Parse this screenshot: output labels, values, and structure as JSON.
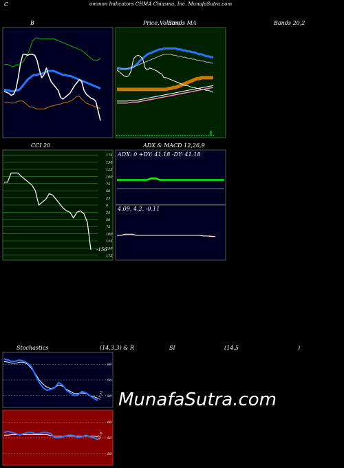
{
  "header": {
    "c_letter": "C",
    "title": "ommon Indicators CHMA Chiasma, Inc. MunafaSutra.com"
  },
  "labels": {
    "b": "B",
    "price_a": "Price, ",
    "price_b": "Volume",
    "price_c": "Bands MA",
    "bands": "Bands 20,2",
    "cci": "CCI 20",
    "adx": "ADX  & MACD 12,26,9",
    "adx_values": "ADX: 0  +DY: 41.18  -DY: 41.18",
    "macd_values": "4.09,  4.2,  -0.11",
    "stoch_a": "Stochastics",
    "stoch_b": "(14,3,3) & R",
    "stoch_c": "SI",
    "stoch_d": "(14,5",
    "stoch_e": ")"
  },
  "watermark": "MunafaSutra.com",
  "colors": {
    "panel_navy": "#000022",
    "price_bg": "#002200",
    "cci_bg": "#001a00",
    "rsi_bg": "#880000",
    "green": "#00cc00",
    "blue": "#2277ff",
    "orange": "#cc7700"
  },
  "chart_data": [
    {
      "type": "line",
      "panel": "bollinger",
      "series": [
        {
          "values": [
            73,
            74,
            73,
            72,
            71,
            73,
            73,
            75,
            76,
            80,
            84,
            90,
            97,
            100,
            101,
            100,
            100,
            100,
            100,
            100,
            100,
            100,
            99,
            98,
            97,
            96,
            95,
            94,
            93,
            92,
            91,
            90,
            89,
            88,
            86,
            84,
            82,
            80,
            78,
            78,
            78,
            80
          ]
        },
        {
          "values": [
            48,
            47,
            47,
            46,
            46,
            47,
            47,
            49,
            52,
            55,
            58,
            60,
            62,
            63,
            63,
            64,
            64,
            65,
            66,
            67,
            67,
            67,
            66,
            65,
            64,
            63,
            63,
            62,
            62,
            61,
            60,
            59,
            58,
            57,
            56,
            55,
            54,
            53,
            52,
            51,
            50,
            49
          ]
        },
        {
          "values": [
            35,
            34,
            35,
            34,
            34,
            35,
            36,
            36,
            36,
            34,
            32,
            30,
            30,
            29,
            28,
            28,
            28,
            28,
            29,
            30,
            31,
            31,
            32,
            33,
            33,
            34,
            35,
            35,
            36,
            37,
            39,
            41,
            41,
            38,
            36,
            34,
            33,
            32,
            31,
            30,
            30,
            28
          ]
        },
        {
          "values": [
            46,
            45,
            44,
            42,
            43,
            48,
            60,
            75,
            84,
            84,
            83,
            84,
            84,
            83,
            78,
            68,
            60,
            63,
            70,
            62,
            56,
            53,
            50,
            47,
            40,
            38,
            40,
            42,
            44,
            48,
            52,
            55,
            58,
            56,
            47,
            43,
            41,
            39,
            38,
            36,
            26,
            16
          ]
        }
      ]
    },
    {
      "type": "line",
      "panel": "price",
      "series": [
        {
          "values": [
            48,
            48,
            48,
            48,
            48,
            48,
            48,
            48,
            48,
            48,
            48,
            48,
            48,
            48,
            48,
            48,
            48,
            48,
            48,
            48,
            48,
            48,
            49,
            49,
            50,
            50,
            51,
            52,
            53,
            54,
            55,
            56,
            57,
            58,
            59,
            59,
            60,
            60,
            60,
            60,
            60,
            60
          ]
        },
        {
          "values": [
            68,
            66,
            64,
            62,
            61,
            62,
            67,
            79,
            82,
            83,
            82,
            79,
            70,
            68,
            70,
            69,
            68,
            67,
            65,
            64,
            60,
            60,
            59,
            58,
            57,
            56,
            55,
            54,
            53,
            52,
            52,
            51,
            50,
            50,
            49,
            49,
            48,
            48,
            47,
            47,
            46,
            45
          ]
        },
        {
          "values": [
            70,
            70,
            69,
            69,
            69,
            69,
            70,
            71,
            73,
            75,
            78,
            80,
            82,
            84,
            85,
            86,
            87,
            88,
            89,
            89,
            90,
            90,
            90,
            90,
            90,
            90,
            89,
            89,
            88,
            88,
            87,
            87,
            86,
            86,
            85,
            84,
            84,
            83,
            82,
            82,
            81,
            81
          ]
        },
        {
          "values": [
            69,
            69,
            69,
            69,
            69,
            70,
            70,
            71,
            72,
            73,
            74,
            75,
            76,
            77,
            78,
            79,
            80,
            81,
            82,
            83,
            84,
            84,
            84,
            84,
            83,
            83,
            82,
            82,
            81,
            81,
            80,
            80,
            79,
            79,
            78,
            78,
            77,
            77,
            76,
            76,
            75,
            75
          ]
        }
      ],
      "volume": [
        1,
        1,
        1,
        1,
        1,
        1,
        1,
        1,
        1,
        1,
        1,
        1,
        1,
        1,
        1,
        1,
        1,
        1,
        1,
        1,
        1,
        1,
        1,
        1,
        1,
        1,
        1,
        1,
        1,
        1,
        1,
        1,
        1,
        1,
        1,
        1,
        1,
        1,
        1,
        1,
        5,
        1
      ]
    },
    {
      "type": "line",
      "panel": "cci",
      "title": "CCI 20",
      "yticks": [
        175,
        150,
        125,
        100,
        75,
        50,
        25,
        0,
        -25,
        -50,
        -75,
        -100,
        -125,
        -150,
        -175
      ],
      "ytick_labels": [
        "175",
        "150",
        "125",
        "100",
        "75",
        "50",
        "25",
        "0",
        "25",
        "50",
        "75",
        "100",
        "125",
        "150",
        "175"
      ],
      "ylim": [
        -187.5,
        187.5
      ],
      "last_label": "-156",
      "series": [
        {
          "values": [
            80,
            80,
            112,
            112,
            112,
            100,
            90,
            80,
            70,
            50,
            0,
            10,
            20,
            40,
            35,
            20,
            5,
            -10,
            -20,
            -25,
            -45,
            -25,
            -20,
            -30,
            -60,
            -156
          ]
        }
      ]
    },
    {
      "type": "line",
      "panel": "adx",
      "series": [
        {
          "values": [
            50,
            50,
            50,
            50,
            50,
            50,
            50,
            50,
            54,
            54,
            50,
            50,
            50,
            50,
            50,
            50,
            50,
            50,
            50,
            50,
            50,
            50,
            50,
            50,
            50,
            50
          ]
        },
        {
          "values": [
            50,
            50,
            50,
            50,
            50,
            50,
            50,
            50,
            52,
            52,
            50,
            50,
            50,
            50,
            50,
            50,
            50,
            50,
            50,
            50,
            50,
            50,
            50,
            50,
            50,
            50
          ]
        }
      ]
    },
    {
      "type": "line",
      "panel": "macd",
      "series": [
        {
          "values": [
            0,
            0,
            0.2,
            0.2,
            0.2,
            0,
            0,
            0,
            0,
            0,
            0,
            0,
            0,
            0,
            0,
            0,
            0,
            0,
            0,
            0,
            0,
            0,
            -0.1,
            -0.1,
            -0.2,
            -0.2
          ]
        },
        {
          "values": [
            0,
            0,
            0.1,
            0.1,
            0.1,
            0,
            0,
            0,
            0,
            0,
            0,
            0,
            0,
            0,
            0,
            0,
            0,
            0,
            0,
            0,
            0,
            0,
            -0.1,
            -0.1,
            -0.1,
            -0.2
          ]
        }
      ]
    },
    {
      "type": "line",
      "panel": "stochastics",
      "yticks": [
        80,
        50,
        20
      ],
      "ytick_labels": [
        "80",
        "50",
        "20"
      ],
      "last_label": "11.11",
      "ylim": [
        0,
        100
      ],
      "series": [
        {
          "values": [
            90,
            88,
            85,
            86,
            88,
            86,
            82,
            75,
            60,
            45,
            35,
            30,
            32,
            35,
            45,
            40,
            30,
            25,
            20,
            22,
            28,
            25,
            20,
            15,
            11
          ]
        },
        {
          "values": [
            85,
            84,
            82,
            82,
            84,
            84,
            80,
            72,
            62,
            50,
            42,
            36,
            33,
            36,
            40,
            38,
            32,
            28,
            24,
            24,
            25,
            24,
            20,
            18,
            15
          ]
        }
      ]
    },
    {
      "type": "line",
      "panel": "rsi",
      "yticks": [
        80,
        50,
        20
      ],
      "ytick_labels": [
        "80",
        "50",
        "20"
      ],
      "last_label": "45.6",
      "ylim": [
        0,
        100
      ],
      "series": [
        {
          "values": [
            60,
            62,
            60,
            58,
            55,
            58,
            60,
            60,
            58,
            58,
            60,
            60,
            58,
            50,
            50,
            52,
            54,
            55,
            54,
            50,
            52,
            55,
            52,
            50,
            46
          ]
        },
        {
          "values": [
            55,
            55,
            56,
            56,
            56,
            56,
            56,
            56,
            56,
            56,
            56,
            56,
            54,
            53,
            53,
            53,
            53,
            53,
            53,
            53,
            53,
            53,
            53,
            53,
            52
          ]
        }
      ]
    }
  ]
}
